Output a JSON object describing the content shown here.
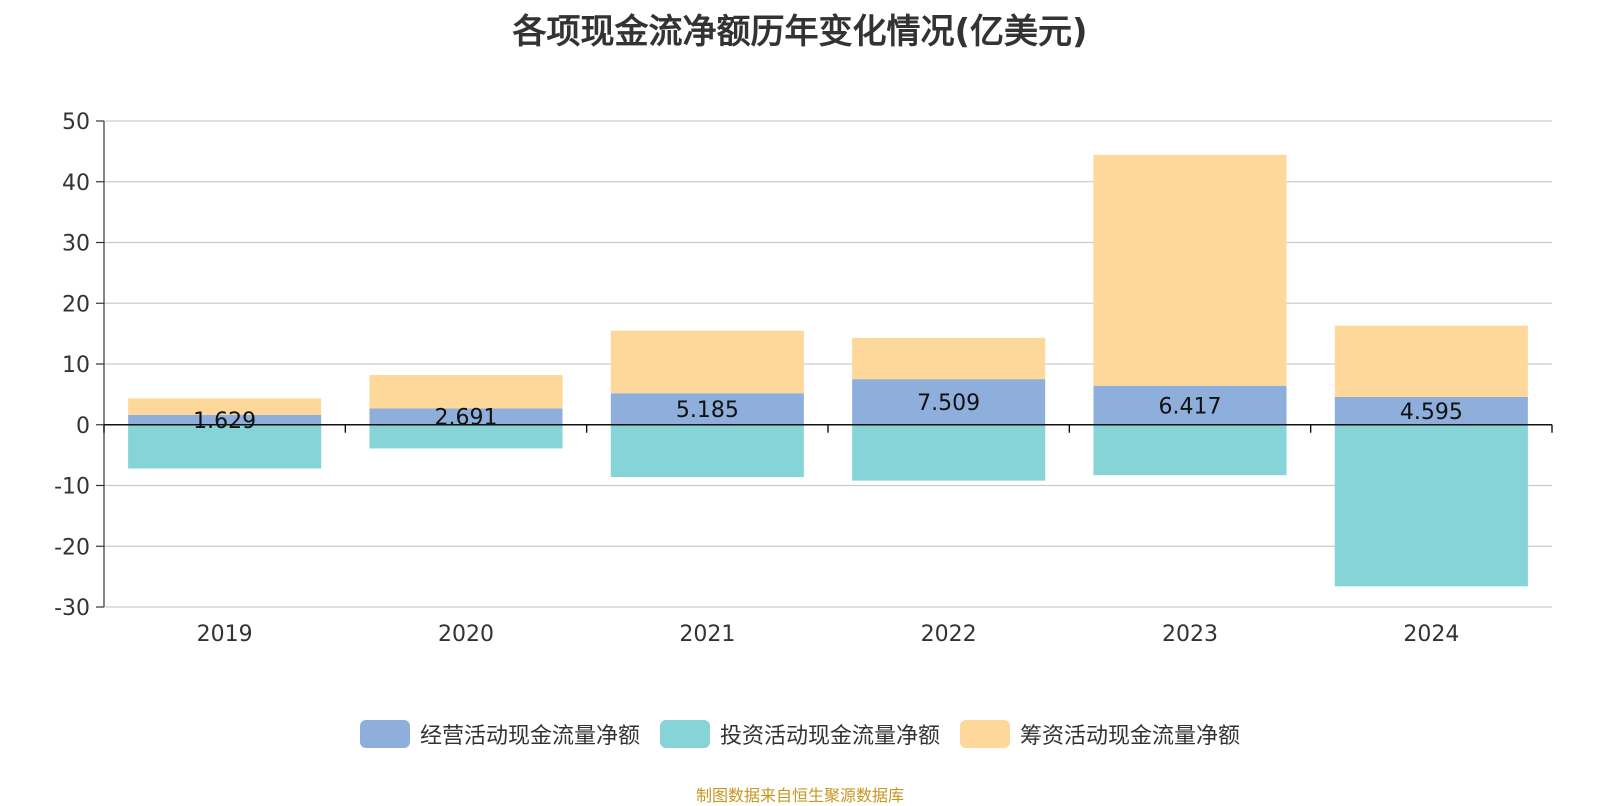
{
  "chart_data": {
    "type": "bar",
    "stacked": true,
    "title": "各项现金流净额历年变化情况(亿美元)",
    "categories": [
      "2019",
      "2020",
      "2021",
      "2022",
      "2023",
      "2024"
    ],
    "series": [
      {
        "name": "经营活动现金流量净额",
        "color": "#8eaedb",
        "values": [
          1.629,
          2.691,
          5.185,
          7.509,
          6.417,
          4.595
        ],
        "labels": [
          "1.629",
          "2.691",
          "5.185",
          "7.509",
          "6.417",
          "4.595"
        ]
      },
      {
        "name": "投资活动现金流量净额",
        "color": "#86d4d8",
        "values": [
          -7.2,
          -3.9,
          -8.6,
          -9.2,
          -8.3,
          -26.6
        ]
      },
      {
        "name": "筹资活动现金流量净额",
        "color": "#fdd89a",
        "values": [
          2.7,
          5.5,
          10.3,
          6.8,
          38.0,
          11.7
        ]
      }
    ],
    "ylim": [
      -30,
      50
    ],
    "yticks": [
      "-30",
      "-20",
      "-10",
      "0",
      "10",
      "20",
      "30",
      "40",
      "50"
    ],
    "grid": true,
    "legend_position": "bottom",
    "xlabel": "",
    "ylabel": ""
  },
  "source_text": "制图数据来自恒生聚源数据库"
}
